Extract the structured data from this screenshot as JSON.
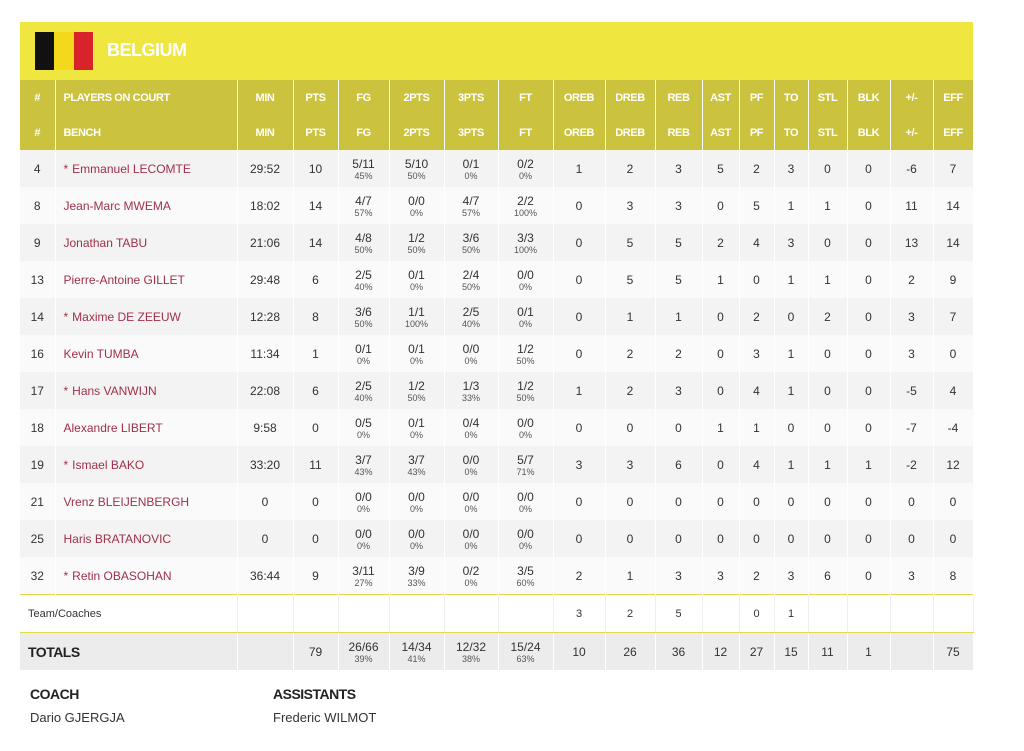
{
  "header": {
    "team": "BELGIUM"
  },
  "table": {
    "columns": [
      [
        "#",
        "PLAYERS ON COURT",
        "MIN",
        "PTS",
        "FG",
        "2PTS",
        "3PTS",
        "FT",
        "OREB",
        "DREB",
        "REB",
        "AST",
        "PF",
        "TO",
        "STL",
        "BLK",
        "+/-",
        "EFF"
      ],
      [
        "#",
        "BENCH",
        "MIN",
        "PTS",
        "FG",
        "2PTS",
        "3PTS",
        "FT",
        "OREB",
        "DREB",
        "REB",
        "AST",
        "PF",
        "TO",
        "STL",
        "BLK",
        "+/-",
        "EFF"
      ]
    ],
    "rows": [
      [
        4,
        {
          "mark": "*",
          "name": "Emmanuel LECOMTE"
        },
        "29:52",
        10,
        {
          "made": "5/11",
          "pct": "45%"
        },
        {
          "made": "5/10",
          "pct": "50%"
        },
        {
          "made": "0/1",
          "pct": "0%"
        },
        {
          "made": "0/2",
          "pct": "0%"
        },
        1,
        2,
        3,
        5,
        2,
        3,
        0,
        0,
        -6,
        7
      ],
      [
        8,
        {
          "name": "Jean-Marc MWEMA"
        },
        "18:02",
        14,
        {
          "made": "4/7",
          "pct": "57%"
        },
        {
          "made": "0/0",
          "pct": "0%"
        },
        {
          "made": "4/7",
          "pct": "57%"
        },
        {
          "made": "2/2",
          "pct": "100%"
        },
        0,
        3,
        3,
        0,
        5,
        1,
        1,
        0,
        11,
        14
      ],
      [
        9,
        {
          "name": "Jonathan TABU"
        },
        "21:06",
        14,
        {
          "made": "4/8",
          "pct": "50%"
        },
        {
          "made": "1/2",
          "pct": "50%"
        },
        {
          "made": "3/6",
          "pct": "50%"
        },
        {
          "made": "3/3",
          "pct": "100%"
        },
        0,
        5,
        5,
        2,
        4,
        3,
        0,
        0,
        13,
        14
      ],
      [
        13,
        {
          "name": "Pierre-Antoine GILLET"
        },
        "29:48",
        6,
        {
          "made": "2/5",
          "pct": "40%"
        },
        {
          "made": "0/1",
          "pct": "0%"
        },
        {
          "made": "2/4",
          "pct": "50%"
        },
        {
          "made": "0/0",
          "pct": "0%"
        },
        0,
        5,
        5,
        1,
        0,
        1,
        1,
        0,
        2,
        9
      ],
      [
        14,
        {
          "mark": "*",
          "name": "Maxime DE ZEEUW"
        },
        "12:28",
        8,
        {
          "made": "3/6",
          "pct": "50%"
        },
        {
          "made": "1/1",
          "pct": "100%"
        },
        {
          "made": "2/5",
          "pct": "40%"
        },
        {
          "made": "0/1",
          "pct": "0%"
        },
        0,
        1,
        1,
        0,
        2,
        0,
        2,
        0,
        3,
        7
      ],
      [
        16,
        {
          "name": "Kevin TUMBA"
        },
        "11:34",
        1,
        {
          "made": "0/1",
          "pct": "0%"
        },
        {
          "made": "0/1",
          "pct": "0%"
        },
        {
          "made": "0/0",
          "pct": "0%"
        },
        {
          "made": "1/2",
          "pct": "50%"
        },
        0,
        2,
        2,
        0,
        3,
        1,
        0,
        0,
        3,
        0
      ],
      [
        17,
        {
          "mark": "*",
          "name": "Hans VANWIJN"
        },
        "22:08",
        6,
        {
          "made": "2/5",
          "pct": "40%"
        },
        {
          "made": "1/2",
          "pct": "50%"
        },
        {
          "made": "1/3",
          "pct": "33%"
        },
        {
          "made": "1/2",
          "pct": "50%"
        },
        1,
        2,
        3,
        0,
        4,
        1,
        0,
        0,
        -5,
        4
      ],
      [
        18,
        {
          "name": "Alexandre LIBERT"
        },
        "9:58",
        0,
        {
          "made": "0/5",
          "pct": "0%"
        },
        {
          "made": "0/1",
          "pct": "0%"
        },
        {
          "made": "0/4",
          "pct": "0%"
        },
        {
          "made": "0/0",
          "pct": "0%"
        },
        0,
        0,
        0,
        1,
        1,
        0,
        0,
        0,
        -7,
        -4
      ],
      [
        19,
        {
          "mark": "*",
          "name": "Ismael BAKO"
        },
        "33:20",
        11,
        {
          "made": "3/7",
          "pct": "43%"
        },
        {
          "made": "3/7",
          "pct": "43%"
        },
        {
          "made": "0/0",
          "pct": "0%"
        },
        {
          "made": "5/7",
          "pct": "71%"
        },
        3,
        3,
        6,
        0,
        4,
        1,
        1,
        1,
        -2,
        12
      ],
      [
        21,
        {
          "name": "Vrenz BLEIJENBERGH"
        },
        0,
        0,
        {
          "made": "0/0",
          "pct": "0%"
        },
        {
          "made": "0/0",
          "pct": "0%"
        },
        {
          "made": "0/0",
          "pct": "0%"
        },
        {
          "made": "0/0",
          "pct": "0%"
        },
        0,
        0,
        0,
        0,
        0,
        0,
        0,
        0,
        0,
        0
      ],
      [
        25,
        {
          "name": "Haris BRATANOVIC"
        },
        0,
        0,
        {
          "made": "0/0",
          "pct": "0%"
        },
        {
          "made": "0/0",
          "pct": "0%"
        },
        {
          "made": "0/0",
          "pct": "0%"
        },
        {
          "made": "0/0",
          "pct": "0%"
        },
        0,
        0,
        0,
        0,
        0,
        0,
        0,
        0,
        0,
        0
      ],
      [
        32,
        {
          "mark": "*",
          "name": "Retin OBASOHAN"
        },
        "36:44",
        9,
        {
          "made": "3/11",
          "pct": "27%"
        },
        {
          "made": "3/9",
          "pct": "33%"
        },
        {
          "made": "0/2",
          "pct": "0%"
        },
        {
          "made": "3/5",
          "pct": "60%"
        },
        2,
        1,
        3,
        3,
        2,
        3,
        6,
        0,
        3,
        8
      ]
    ],
    "team_row": [
      "Team/Coaches",
      null,
      null,
      null,
      null,
      null,
      null,
      3,
      2,
      5,
      null,
      0,
      1,
      null,
      null,
      null,
      null
    ],
    "totals": [
      "TOTALS",
      null,
      79,
      {
        "made": "26/66",
        "pct": "39%"
      },
      {
        "made": "14/34",
        "pct": "41%"
      },
      {
        "made": "12/32",
        "pct": "38%"
      },
      {
        "made": "15/24",
        "pct": "63%"
      },
      10,
      26,
      36,
      12,
      27,
      15,
      11,
      1,
      null,
      75
    ]
  },
  "staff": {
    "coach_label": "COACH",
    "coach": "Dario GJERGJA",
    "assistants_label": "ASSISTANTS",
    "assistants": "Frederic WILMOT"
  }
}
